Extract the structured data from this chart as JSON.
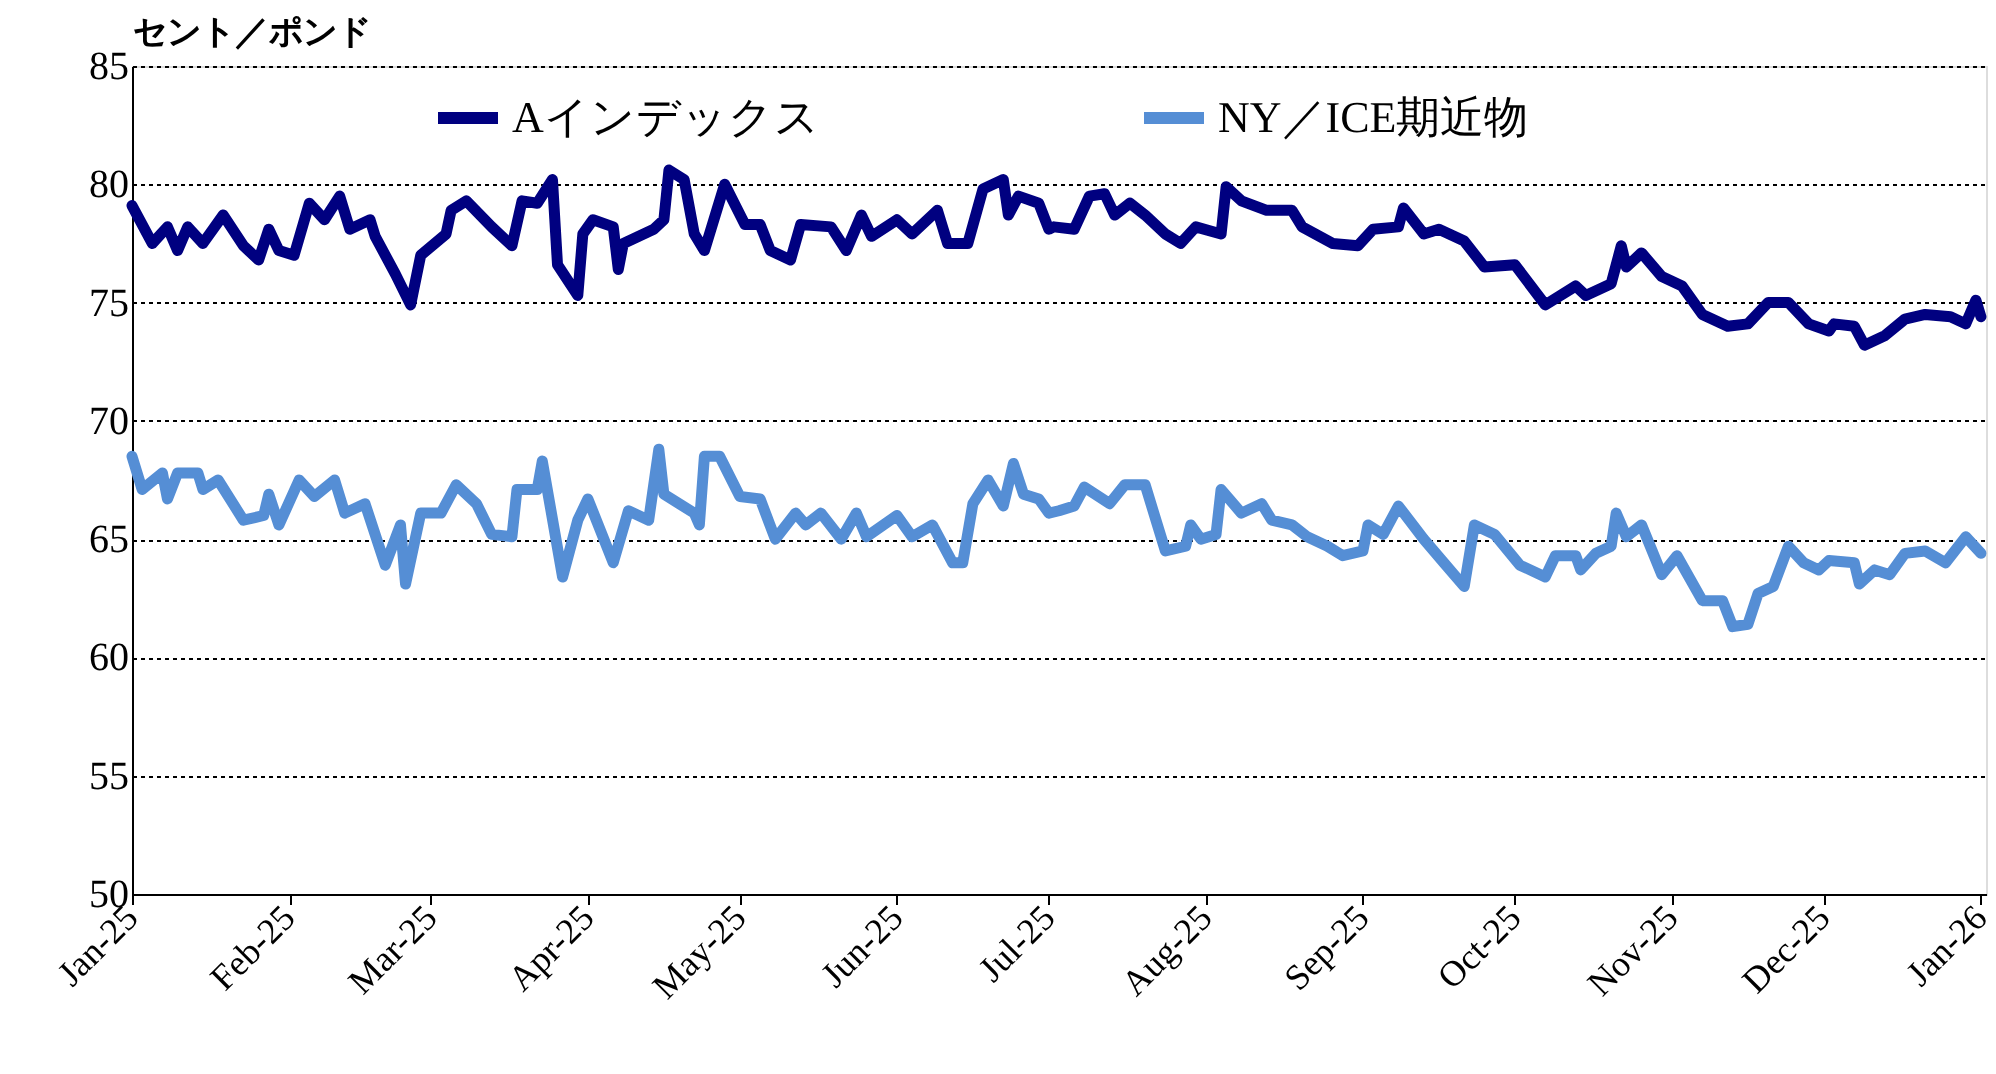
{
  "chart_data": {
    "type": "line",
    "ylabel": "セント／ポンド",
    "legend": "top",
    "grid": "y",
    "line_style": "solid",
    "marker": "none",
    "xlim": [
      "2025-01-01",
      "2026-01-02"
    ],
    "ylim": [
      50,
      85
    ],
    "yticks": [
      50,
      55,
      60,
      65,
      70,
      75,
      80,
      85
    ],
    "xticks": [
      {
        "value": "2025-01-01",
        "label": "Jan-25"
      },
      {
        "value": "2025-02-01",
        "label": "Feb-25"
      },
      {
        "value": "2025-03-01",
        "label": "Mar-25"
      },
      {
        "value": "2025-04-01",
        "label": "Apr-25"
      },
      {
        "value": "2025-05-01",
        "label": "May-25"
      },
      {
        "value": "2025-06-01",
        "label": "Jun-25"
      },
      {
        "value": "2025-07-01",
        "label": "Jul-25"
      },
      {
        "value": "2025-08-01",
        "label": "Aug-25"
      },
      {
        "value": "2025-09-01",
        "label": "Sep-25"
      },
      {
        "value": "2025-10-01",
        "label": "Oct-25"
      },
      {
        "value": "2025-11-01",
        "label": "Nov-25"
      },
      {
        "value": "2025-12-01",
        "label": "Dec-25"
      },
      {
        "value": "2026-01-01",
        "label": "Jan-26"
      }
    ],
    "series": [
      {
        "name": "Aインデックス",
        "color": "#000080",
        "x": [
          "2025-01-01",
          "2025-01-05",
          "2025-01-08",
          "2025-01-10",
          "2025-01-12",
          "2025-01-15",
          "2025-01-19",
          "2025-01-23",
          "2025-01-26",
          "2025-01-28",
          "2025-01-30",
          "2025-02-02",
          "2025-02-05",
          "2025-02-08",
          "2025-02-11",
          "2025-02-13",
          "2025-02-17",
          "2025-02-18",
          "2025-02-22",
          "2025-02-25",
          "2025-02-27",
          "2025-03-04",
          "2025-03-05",
          "2025-03-08",
          "2025-03-13",
          "2025-03-17",
          "2025-03-19",
          "2025-03-22",
          "2025-03-25",
          "2025-03-26",
          "2025-03-30",
          "2025-03-31",
          "2025-04-02",
          "2025-04-06",
          "2025-04-07",
          "2025-04-08",
          "2025-04-14",
          "2025-04-16",
          "2025-04-17",
          "2025-04-20",
          "2025-04-22",
          "2025-04-24",
          "2025-04-28",
          "2025-05-02",
          "2025-05-05",
          "2025-05-07",
          "2025-05-11",
          "2025-05-13",
          "2025-05-19",
          "2025-05-22",
          "2025-05-25",
          "2025-05-27",
          "2025-06-01",
          "2025-06-04",
          "2025-06-09",
          "2025-06-11",
          "2025-06-15",
          "2025-06-18",
          "2025-06-22",
          "2025-06-23",
          "2025-06-25",
          "2025-06-29",
          "2025-07-01",
          "2025-07-02",
          "2025-07-06",
          "2025-07-09",
          "2025-07-12",
          "2025-07-14",
          "2025-07-17",
          "2025-07-20",
          "2025-07-24",
          "2025-07-27",
          "2025-07-30",
          "2025-08-04",
          "2025-08-05",
          "2025-08-08",
          "2025-08-13",
          "2025-08-18",
          "2025-08-20",
          "2025-08-26",
          "2025-08-31",
          "2025-09-03",
          "2025-09-08",
          "2025-09-09",
          "2025-09-13",
          "2025-09-16",
          "2025-09-21",
          "2025-09-25",
          "2025-10-01",
          "2025-10-07",
          "2025-10-13",
          "2025-10-15",
          "2025-10-20",
          "2025-10-22",
          "2025-10-23",
          "2025-10-26",
          "2025-10-30",
          "2025-11-03",
          "2025-11-07",
          "2025-11-12",
          "2025-11-16",
          "2025-11-20",
          "2025-11-24",
          "2025-11-28",
          "2025-12-02",
          "2025-12-03",
          "2025-12-07",
          "2025-12-09",
          "2025-12-13",
          "2025-12-17",
          "2025-12-21",
          "2025-12-26",
          "2025-12-29",
          "2025-12-31",
          "2026-01-01"
        ],
        "values": [
          79.1,
          77.5,
          78.2,
          77.2,
          78.2,
          77.5,
          78.7,
          77.4,
          76.8,
          78.1,
          77.2,
          77.0,
          79.2,
          78.5,
          79.5,
          78.1,
          78.5,
          77.8,
          76.2,
          74.9,
          77.0,
          77.9,
          78.9,
          79.3,
          78.2,
          77.4,
          79.3,
          79.2,
          80.2,
          76.6,
          75.3,
          77.9,
          78.5,
          78.2,
          76.4,
          77.5,
          78.1,
          78.5,
          80.6,
          80.2,
          77.9,
          77.2,
          80.0,
          78.3,
          78.3,
          77.2,
          76.8,
          78.3,
          78.2,
          77.2,
          78.7,
          77.8,
          78.5,
          77.9,
          78.9,
          77.5,
          77.5,
          79.8,
          80.2,
          78.7,
          79.5,
          79.2,
          78.1,
          78.2,
          78.1,
          79.5,
          79.6,
          78.7,
          79.2,
          78.7,
          77.9,
          77.5,
          78.2,
          77.9,
          79.9,
          79.3,
          78.9,
          78.9,
          78.2,
          77.5,
          77.4,
          78.1,
          78.2,
          79.0,
          77.9,
          78.1,
          77.6,
          76.5,
          76.6,
          74.9,
          75.7,
          75.3,
          75.8,
          77.4,
          76.5,
          77.1,
          76.1,
          75.7,
          74.5,
          74.0,
          74.1,
          75.0,
          75.0,
          74.1,
          73.8,
          74.1,
          74.0,
          73.2,
          73.6,
          74.3,
          74.5,
          74.4,
          74.1,
          75.1,
          74.4
        ]
      },
      {
        "name": "NY／ICE期近物",
        "color": "#558ed5",
        "x": [
          "2025-01-01",
          "2025-01-03",
          "2025-01-07",
          "2025-01-08",
          "2025-01-10",
          "2025-01-14",
          "2025-01-15",
          "2025-01-18",
          "2025-01-23",
          "2025-01-27",
          "2025-01-28",
          "2025-01-30",
          "2025-02-03",
          "2025-02-06",
          "2025-02-10",
          "2025-02-12",
          "2025-02-16",
          "2025-02-20",
          "2025-02-23",
          "2025-02-24",
          "2025-02-27",
          "2025-03-03",
          "2025-03-06",
          "2025-03-10",
          "2025-03-13",
          "2025-03-17",
          "2025-03-18",
          "2025-03-22",
          "2025-03-23",
          "2025-03-27",
          "2025-03-30",
          "2025-04-01",
          "2025-04-06",
          "2025-04-09",
          "2025-04-13",
          "2025-04-15",
          "2025-04-16",
          "2025-04-22",
          "2025-04-23",
          "2025-04-24",
          "2025-04-27",
          "2025-05-01",
          "2025-05-05",
          "2025-05-08",
          "2025-05-12",
          "2025-05-14",
          "2025-05-17",
          "2025-05-21",
          "2025-05-24",
          "2025-05-26",
          "2025-06-01",
          "2025-06-04",
          "2025-06-08",
          "2025-06-12",
          "2025-06-14",
          "2025-06-16",
          "2025-06-19",
          "2025-06-22",
          "2025-06-24",
          "2025-06-26",
          "2025-06-29",
          "2025-07-01",
          "2025-07-03",
          "2025-07-06",
          "2025-07-08",
          "2025-07-13",
          "2025-07-16",
          "2025-07-20",
          "2025-07-24",
          "2025-07-28",
          "2025-07-29",
          "2025-07-31",
          "2025-08-03",
          "2025-08-04",
          "2025-08-08",
          "2025-08-12",
          "2025-08-14",
          "2025-08-18",
          "2025-08-21",
          "2025-08-25",
          "2025-08-28",
          "2025-09-01",
          "2025-09-02",
          "2025-09-05",
          "2025-09-08",
          "2025-09-13",
          "2025-09-17",
          "2025-09-21",
          "2025-09-23",
          "2025-09-27",
          "2025-10-02",
          "2025-10-07",
          "2025-10-09",
          "2025-10-13",
          "2025-10-14",
          "2025-10-17",
          "2025-10-20",
          "2025-10-21",
          "2025-10-23",
          "2025-10-26",
          "2025-10-30",
          "2025-11-02",
          "2025-11-07",
          "2025-11-11",
          "2025-11-13",
          "2025-11-16",
          "2025-11-18",
          "2025-11-21",
          "2025-11-24",
          "2025-11-27",
          "2025-11-30",
          "2025-12-02",
          "2025-12-07",
          "2025-12-08",
          "2025-12-11",
          "2025-12-14",
          "2025-12-17",
          "2025-12-21",
          "2025-12-25",
          "2025-12-29",
          "2026-01-01"
        ],
        "values": [
          68.5,
          67.1,
          67.8,
          66.7,
          67.8,
          67.8,
          67.1,
          67.5,
          65.8,
          66.0,
          66.9,
          65.6,
          67.5,
          66.8,
          67.5,
          66.1,
          66.5,
          63.9,
          65.6,
          63.1,
          66.1,
          66.1,
          67.3,
          66.5,
          65.2,
          65.1,
          67.1,
          67.1,
          68.3,
          63.4,
          65.8,
          66.7,
          64.0,
          66.2,
          65.8,
          68.8,
          66.9,
          66.1,
          65.6,
          68.5,
          68.5,
          66.8,
          66.7,
          65.0,
          66.1,
          65.6,
          66.1,
          65.0,
          66.1,
          65.1,
          66.0,
          65.1,
          65.6,
          64.0,
          64.0,
          66.5,
          67.5,
          66.4,
          68.2,
          66.9,
          66.7,
          66.1,
          66.2,
          66.4,
          67.2,
          66.5,
          67.3,
          67.3,
          64.5,
          64.7,
          65.6,
          65.0,
          65.2,
          67.1,
          66.1,
          66.5,
          65.8,
          65.6,
          65.1,
          64.7,
          64.3,
          64.5,
          65.6,
          65.2,
          66.4,
          65.0,
          64.0,
          63.0,
          65.6,
          65.2,
          63.9,
          63.4,
          64.3,
          64.3,
          63.7,
          64.4,
          64.7,
          66.1,
          65.1,
          65.6,
          63.5,
          64.3,
          62.4,
          62.4,
          61.3,
          61.4,
          62.7,
          63.0,
          64.7,
          64.0,
          63.7,
          64.1,
          64.0,
          63.1,
          63.7,
          63.5,
          64.4,
          64.5,
          64.0,
          65.1,
          64.4
        ]
      }
    ]
  }
}
